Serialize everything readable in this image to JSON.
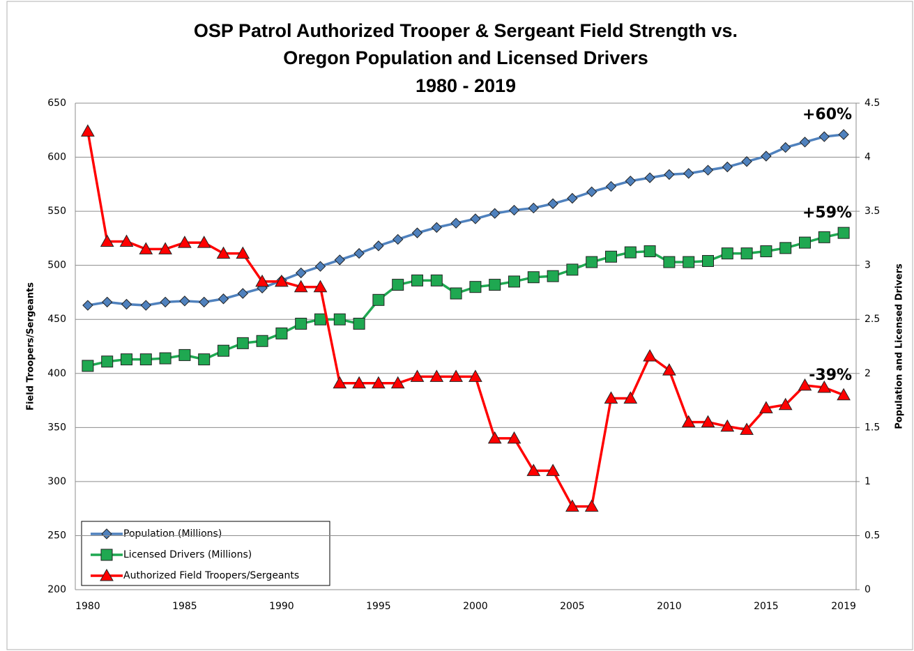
{
  "chart_data": {
    "type": "line",
    "title": [
      "OSP Patrol Authorized Trooper & Sergeant Field Strength vs.",
      "Oregon Population and Licensed Drivers"
    ],
    "subtitle": "1980 - 2019",
    "y_label": "Field Troopers/Sergeants",
    "y2_label": "Population and Licensed Drivers",
    "categories": [
      "1980",
      null,
      null,
      null,
      null,
      "1985",
      null,
      null,
      null,
      null,
      "1990",
      null,
      null,
      null,
      null,
      "1995",
      null,
      null,
      null,
      null,
      "2000",
      null,
      null,
      null,
      null,
      "2005",
      null,
      null,
      null,
      null,
      "2010",
      null,
      null,
      null,
      null,
      "2015",
      null,
      null,
      null,
      "2019"
    ],
    "ylim": [
      200,
      650
    ],
    "yticks": [
      200,
      250,
      300,
      350,
      400,
      450,
      500,
      550,
      600,
      650
    ],
    "y2lim": [
      0,
      4.5
    ],
    "y2ticks": [
      0,
      0.5,
      1,
      1.5,
      2,
      2.5,
      3,
      3.5,
      4,
      4.5
    ],
    "grid": true,
    "series": [
      {
        "name": "Population (Millions)",
        "color": "#4f81bd",
        "marker": "diamond",
        "axis": "y2",
        "values": [
          2.63,
          2.66,
          2.64,
          2.63,
          2.66,
          2.67,
          2.66,
          2.69,
          2.74,
          2.79,
          2.86,
          2.93,
          2.99,
          3.05,
          3.11,
          3.18,
          3.24,
          3.3,
          3.35,
          3.39,
          3.43,
          3.48,
          3.51,
          3.53,
          3.57,
          3.62,
          3.68,
          3.73,
          3.78,
          3.81,
          3.84,
          3.85,
          3.88,
          3.91,
          3.96,
          4.01,
          4.09,
          4.14,
          4.19,
          4.21
        ]
      },
      {
        "name": "Licensed Drivers (Millions)",
        "color": "#1fa851",
        "marker": "square",
        "axis": "y2",
        "values": [
          2.07,
          2.11,
          2.13,
          2.13,
          2.14,
          2.17,
          2.13,
          2.21,
          2.28,
          2.3,
          2.37,
          2.46,
          2.5,
          2.5,
          2.46,
          2.68,
          2.82,
          2.86,
          2.86,
          2.74,
          2.8,
          2.82,
          2.85,
          2.89,
          2.9,
          2.96,
          3.03,
          3.08,
          3.12,
          3.13,
          3.03,
          3.03,
          3.04,
          3.11,
          3.11,
          3.13,
          3.16,
          3.21,
          3.26,
          3.3
        ]
      },
      {
        "name": "Authorized Field Troopers/Sergeants",
        "color": "#ff0000",
        "marker": "triangle",
        "values": [
          624,
          522,
          522,
          515,
          515,
          521,
          521,
          511,
          511,
          485,
          485,
          480,
          480,
          391,
          391,
          391,
          391,
          397,
          397,
          397,
          397,
          340,
          340,
          310,
          310,
          277,
          277,
          377,
          377,
          416,
          403,
          355,
          355,
          351,
          348,
          368,
          371,
          389,
          387,
          380
        ]
      }
    ],
    "annotations": [
      {
        "text": "+60%",
        "series": 0,
        "color": "#2e75b6"
      },
      {
        "text": "+59%",
        "series": 1,
        "color": "#1fa851"
      },
      {
        "text": "-39%",
        "series": 2,
        "color": "#ff0000"
      }
    ]
  }
}
